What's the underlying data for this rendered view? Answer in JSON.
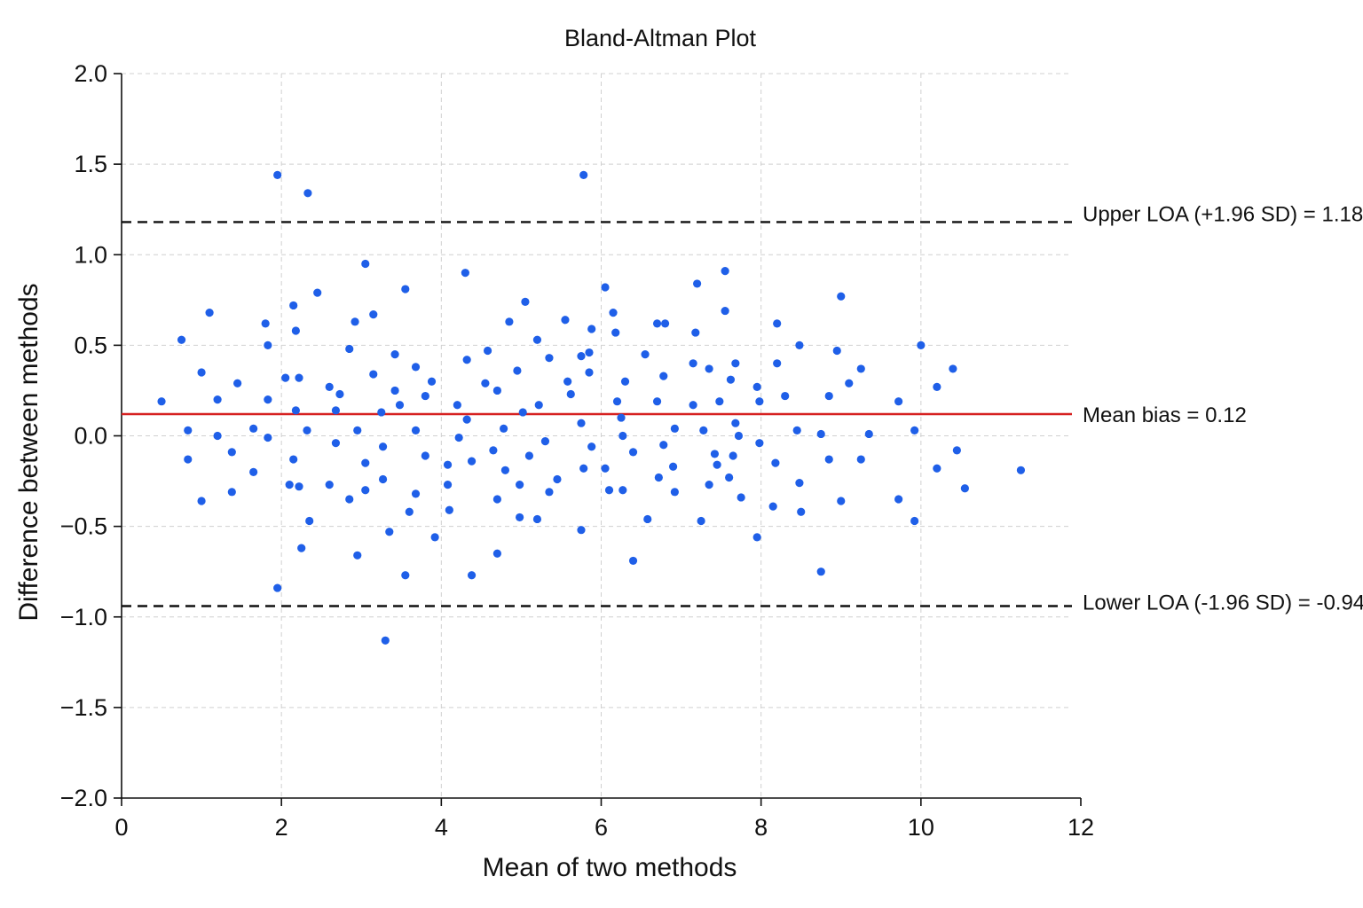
{
  "chart_data": {
    "type": "scatter",
    "title": "Bland-Altman Plot",
    "xlabel": "Mean of two methods",
    "ylabel": "Difference between methods",
    "xlim": [
      0,
      12
    ],
    "ylim": [
      -2.0,
      2.0
    ],
    "xticks": [
      0,
      2,
      4,
      6,
      8,
      10,
      12
    ],
    "xtick_labels": [
      "0",
      "2",
      "4",
      "6",
      "8",
      "10",
      "12"
    ],
    "yticks": [
      2.0,
      1.5,
      1.0,
      0.5,
      0.0,
      -0.5,
      -1.0,
      -1.5,
      -2.0
    ],
    "ytick_labels": [
      "2.0",
      "1.5",
      "1.0",
      "0.5",
      "0.0",
      "−0.5",
      "−1.0",
      "−1.5",
      "−2.0"
    ],
    "grid": true,
    "point_color": "#1f5fe8",
    "reference_lines": [
      {
        "name": "upper_loa",
        "value": 1.18,
        "label": "Upper LOA (+1.96 SD) = 1.18",
        "color": "#111111",
        "style": "dashed"
      },
      {
        "name": "mean_bias",
        "value": 0.12,
        "label": "Mean bias = 0.12",
        "color": "#d62020",
        "style": "solid"
      },
      {
        "name": "lower_loa",
        "value": -0.94,
        "label": "Lower LOA (-1.96 SD) = -0.94",
        "color": "#111111",
        "style": "dashed"
      }
    ],
    "points": [
      [
        0.5,
        0.19
      ],
      [
        0.75,
        0.53
      ],
      [
        0.83,
        0.03
      ],
      [
        0.83,
        -0.13
      ],
      [
        1.0,
        0.35
      ],
      [
        1.0,
        -0.36
      ],
      [
        1.1,
        0.68
      ],
      [
        1.2,
        0.2
      ],
      [
        1.2,
        0.0
      ],
      [
        1.38,
        -0.09
      ],
      [
        1.38,
        -0.31
      ],
      [
        1.45,
        0.29
      ],
      [
        1.65,
        0.04
      ],
      [
        1.65,
        -0.2
      ],
      [
        1.8,
        0.62
      ],
      [
        1.83,
        0.5
      ],
      [
        1.83,
        0.2
      ],
      [
        1.83,
        -0.01
      ],
      [
        1.95,
        1.44
      ],
      [
        1.95,
        -0.84
      ],
      [
        2.05,
        0.32
      ],
      [
        2.1,
        -0.27
      ],
      [
        2.15,
        0.72
      ],
      [
        2.15,
        -0.13
      ],
      [
        2.18,
        0.58
      ],
      [
        2.18,
        0.14
      ],
      [
        2.22,
        0.32
      ],
      [
        2.22,
        -0.28
      ],
      [
        2.25,
        -0.62
      ],
      [
        2.32,
        0.03
      ],
      [
        2.33,
        1.34
      ],
      [
        2.35,
        -0.47
      ],
      [
        2.45,
        0.79
      ],
      [
        2.6,
        0.27
      ],
      [
        2.6,
        -0.27
      ],
      [
        2.68,
        0.14
      ],
      [
        2.68,
        -0.04
      ],
      [
        2.73,
        0.23
      ],
      [
        2.85,
        0.48
      ],
      [
        2.85,
        -0.35
      ],
      [
        2.92,
        0.63
      ],
      [
        2.95,
        0.03
      ],
      [
        2.95,
        -0.66
      ],
      [
        3.05,
        0.95
      ],
      [
        3.05,
        -0.15
      ],
      [
        3.05,
        -0.3
      ],
      [
        3.15,
        0.67
      ],
      [
        3.15,
        0.34
      ],
      [
        3.25,
        0.13
      ],
      [
        3.27,
        -0.06
      ],
      [
        3.27,
        -0.24
      ],
      [
        3.3,
        -1.13
      ],
      [
        3.35,
        -0.53
      ],
      [
        3.42,
        0.45
      ],
      [
        3.42,
        0.25
      ],
      [
        3.48,
        0.17
      ],
      [
        3.55,
        0.81
      ],
      [
        3.55,
        -0.77
      ],
      [
        3.6,
        -0.42
      ],
      [
        3.68,
        0.38
      ],
      [
        3.68,
        0.03
      ],
      [
        3.68,
        -0.32
      ],
      [
        3.8,
        0.22
      ],
      [
        3.8,
        -0.11
      ],
      [
        3.88,
        0.3
      ],
      [
        3.92,
        -0.56
      ],
      [
        4.08,
        -0.16
      ],
      [
        4.08,
        -0.27
      ],
      [
        4.1,
        -0.41
      ],
      [
        4.2,
        0.17
      ],
      [
        4.22,
        -0.01
      ],
      [
        4.3,
        0.9
      ],
      [
        4.32,
        0.42
      ],
      [
        4.32,
        0.09
      ],
      [
        4.38,
        -0.14
      ],
      [
        4.38,
        -0.77
      ],
      [
        4.55,
        0.29
      ],
      [
        4.58,
        0.47
      ],
      [
        4.65,
        -0.08
      ],
      [
        4.7,
        0.25
      ],
      [
        4.7,
        -0.35
      ],
      [
        4.7,
        -0.65
      ],
      [
        4.78,
        0.04
      ],
      [
        4.8,
        -0.19
      ],
      [
        4.85,
        0.63
      ],
      [
        4.95,
        0.36
      ],
      [
        4.98,
        -0.27
      ],
      [
        4.98,
        -0.45
      ],
      [
        5.02,
        0.13
      ],
      [
        5.05,
        0.74
      ],
      [
        5.1,
        -0.11
      ],
      [
        5.2,
        0.53
      ],
      [
        5.2,
        -0.46
      ],
      [
        5.22,
        0.17
      ],
      [
        5.3,
        -0.03
      ],
      [
        5.35,
        0.43
      ],
      [
        5.35,
        -0.31
      ],
      [
        5.45,
        -0.24
      ],
      [
        5.55,
        0.64
      ],
      [
        5.58,
        0.3
      ],
      [
        5.62,
        0.23
      ],
      [
        5.75,
        0.44
      ],
      [
        5.75,
        0.07
      ],
      [
        5.75,
        -0.52
      ],
      [
        5.78,
        1.44
      ],
      [
        5.78,
        -0.18
      ],
      [
        5.85,
        0.46
      ],
      [
        5.85,
        0.35
      ],
      [
        5.88,
        0.59
      ],
      [
        5.88,
        -0.06
      ],
      [
        6.05,
        0.82
      ],
      [
        6.05,
        -0.18
      ],
      [
        6.1,
        -0.3
      ],
      [
        6.15,
        0.68
      ],
      [
        6.18,
        0.57
      ],
      [
        6.2,
        0.19
      ],
      [
        6.25,
        0.1
      ],
      [
        6.27,
        0.0
      ],
      [
        6.27,
        -0.3
      ],
      [
        6.3,
        0.3
      ],
      [
        6.4,
        -0.09
      ],
      [
        6.4,
        -0.69
      ],
      [
        6.55,
        0.45
      ],
      [
        6.58,
        -0.46
      ],
      [
        6.7,
        0.62
      ],
      [
        6.7,
        0.19
      ],
      [
        6.72,
        -0.23
      ],
      [
        6.78,
        0.33
      ],
      [
        6.78,
        -0.05
      ],
      [
        6.8,
        0.62
      ],
      [
        6.9,
        -0.17
      ],
      [
        6.92,
        0.04
      ],
      [
        6.92,
        -0.31
      ],
      [
        7.15,
        0.4
      ],
      [
        7.15,
        0.17
      ],
      [
        7.18,
        0.57
      ],
      [
        7.2,
        0.84
      ],
      [
        7.25,
        -0.47
      ],
      [
        7.28,
        0.03
      ],
      [
        7.35,
        0.37
      ],
      [
        7.35,
        -0.27
      ],
      [
        7.42,
        -0.1
      ],
      [
        7.45,
        -0.16
      ],
      [
        7.48,
        0.19
      ],
      [
        7.55,
        0.91
      ],
      [
        7.55,
        0.69
      ],
      [
        7.6,
        -0.23
      ],
      [
        7.62,
        0.31
      ],
      [
        7.65,
        -0.11
      ],
      [
        7.68,
        0.07
      ],
      [
        7.68,
        0.4
      ],
      [
        7.72,
        0.0
      ],
      [
        7.75,
        -0.34
      ],
      [
        7.95,
        0.27
      ],
      [
        7.95,
        -0.56
      ],
      [
        7.98,
        0.19
      ],
      [
        7.98,
        -0.04
      ],
      [
        8.15,
        -0.39
      ],
      [
        8.18,
        -0.15
      ],
      [
        8.2,
        0.62
      ],
      [
        8.2,
        0.4
      ],
      [
        8.3,
        0.22
      ],
      [
        8.45,
        0.03
      ],
      [
        8.48,
        0.5
      ],
      [
        8.48,
        -0.26
      ],
      [
        8.5,
        -0.42
      ],
      [
        8.75,
        0.01
      ],
      [
        8.75,
        -0.75
      ],
      [
        8.85,
        0.22
      ],
      [
        8.85,
        -0.13
      ],
      [
        8.95,
        0.47
      ],
      [
        9.0,
        0.77
      ],
      [
        9.0,
        -0.36
      ],
      [
        9.1,
        0.29
      ],
      [
        9.25,
        0.37
      ],
      [
        9.25,
        -0.13
      ],
      [
        9.35,
        0.01
      ],
      [
        9.72,
        0.19
      ],
      [
        9.72,
        -0.35
      ],
      [
        9.92,
        0.03
      ],
      [
        9.92,
        -0.47
      ],
      [
        10.0,
        0.5
      ],
      [
        10.2,
        -0.18
      ],
      [
        10.2,
        0.27
      ],
      [
        10.4,
        0.37
      ],
      [
        10.45,
        -0.08
      ],
      [
        10.55,
        -0.29
      ],
      [
        11.25,
        -0.19
      ]
    ]
  }
}
